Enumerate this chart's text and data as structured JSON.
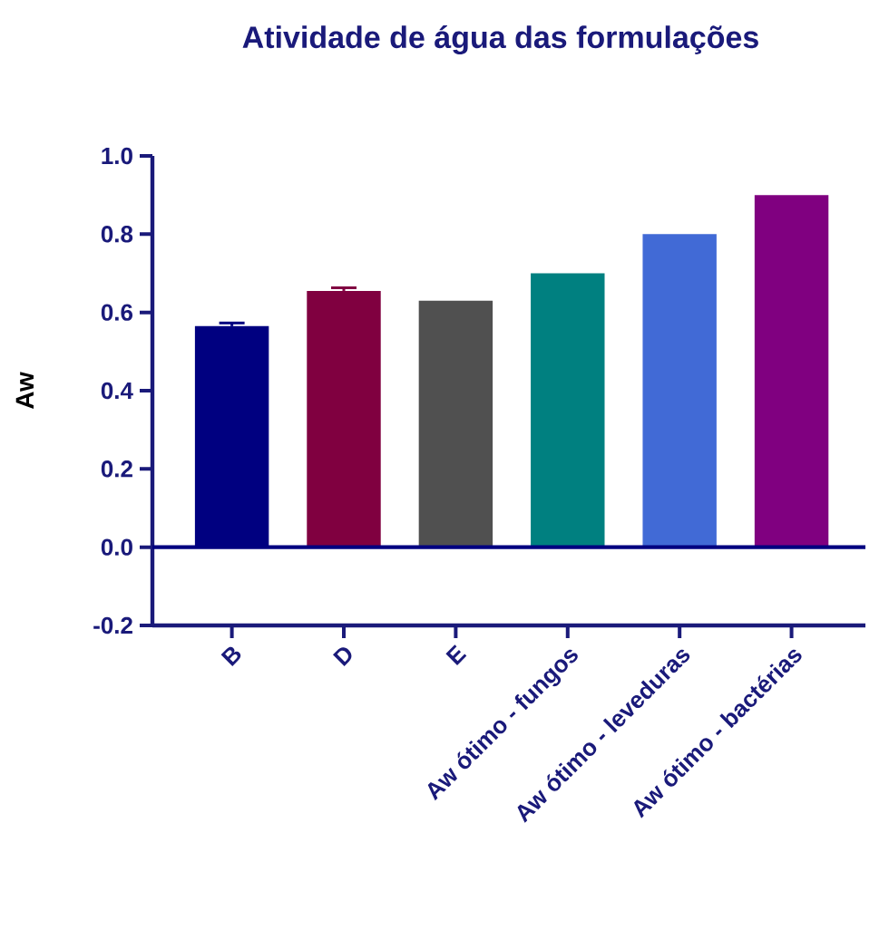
{
  "chart_data": {
    "type": "bar",
    "title": "Atividade de água das formulações",
    "ylabel": "Aw",
    "categories": [
      "B",
      "D",
      "E",
      "Aw ótimo - fungos",
      "Aw ótimo - leveduras",
      "Aw ótimo - bactérias"
    ],
    "values": [
      0.565,
      0.655,
      0.63,
      0.7,
      0.8,
      0.9
    ],
    "errors": [
      0.008,
      0.008,
      null,
      null,
      null,
      null
    ],
    "colors": [
      "#000080",
      "#800040",
      "#505050",
      "#008080",
      "#416ad6",
      "#800080"
    ],
    "ylim": [
      -0.2,
      1.0
    ],
    "yticks": [
      -0.2,
      {
        "value": 0,
        "label": "0.0"
      },
      0.2,
      0.4,
      0.6,
      0.8,
      {
        "value": 1,
        "label": "1.0"
      }
    ],
    "ref_lines": [
      {
        "axis": "y",
        "value": 0,
        "color": "#000080"
      }
    ],
    "grid": false
  }
}
